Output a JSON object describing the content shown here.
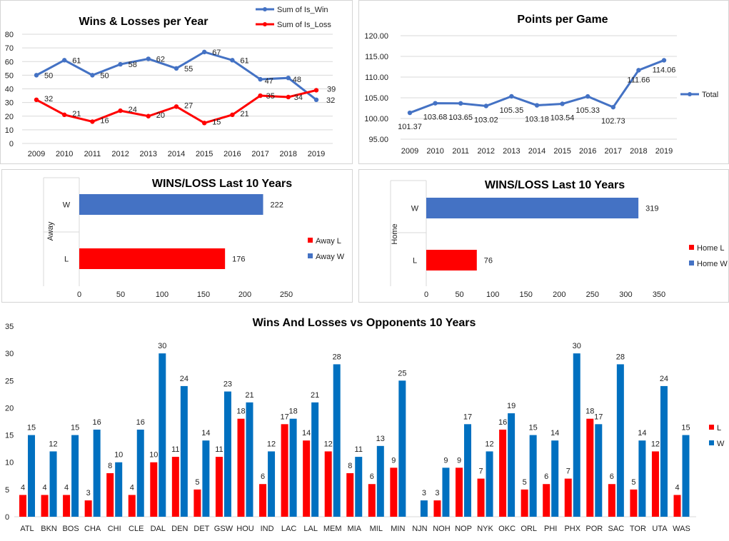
{
  "chart_data": [
    {
      "type": "line",
      "title": "Wins & Losses  per Year",
      "categories": [
        "2009",
        "2010",
        "2011",
        "2012",
        "2013",
        "2014",
        "2015",
        "2016",
        "2017",
        "2018",
        "2019"
      ],
      "ylim": [
        0,
        80
      ],
      "yticks": [
        "0",
        "10",
        "20",
        "30",
        "40",
        "50",
        "60",
        "70",
        "80"
      ],
      "series": [
        {
          "name": "Sum of Is_Win",
          "color": "#4472c4",
          "values": [
            50,
            61,
            50,
            58,
            62,
            55,
            67,
            61,
            47,
            48,
            32
          ]
        },
        {
          "name": "Sum of Is_Loss",
          "color": "#ff0000",
          "values": [
            32,
            21,
            16,
            24,
            20,
            27,
            15,
            21,
            35,
            34,
            39
          ]
        }
      ],
      "legend": "top-right"
    },
    {
      "type": "line",
      "title": "Points per Game",
      "categories": [
        "2009",
        "2010",
        "2011",
        "2012",
        "2013",
        "2014",
        "2015",
        "2016",
        "2017",
        "2018",
        "2019"
      ],
      "ylim": [
        95,
        120
      ],
      "yticks": [
        "95.00",
        "100.00",
        "105.00",
        "110.00",
        "115.00",
        "120.00"
      ],
      "series": [
        {
          "name": "Total",
          "color": "#4472c4",
          "values": [
            101.37,
            103.68,
            103.65,
            103.02,
            105.35,
            103.18,
            103.54,
            105.33,
            102.73,
            111.66,
            114.06
          ],
          "labels": [
            "101.37",
            "103.68",
            "103.65",
            "103.02",
            "105.35",
            "103.18",
            "103.54",
            "105.33",
            "102.73",
            "111.66",
            "114.06"
          ]
        }
      ],
      "legend": "right"
    },
    {
      "type": "bar",
      "orientation": "horizontal",
      "title": "WINS/LOSS  Last 10 Years",
      "ylabel": "Away",
      "categories": [
        "W",
        "L"
      ],
      "xlim": [
        0,
        250
      ],
      "xticks": [
        "0",
        "50",
        "100",
        "150",
        "200",
        "250"
      ],
      "series": [
        {
          "name": "Away L",
          "color": "#ff0000"
        },
        {
          "name": "Away W",
          "color": "#4472c4"
        }
      ],
      "bars": [
        {
          "category": "W",
          "value": 222,
          "color": "#4472c4"
        },
        {
          "category": "L",
          "value": 176,
          "color": "#ff0000"
        }
      ],
      "legend": "right"
    },
    {
      "type": "bar",
      "orientation": "horizontal",
      "title": "WINS/LOSS Last 10 Years",
      "ylabel": "Home",
      "categories": [
        "W",
        "L"
      ],
      "xlim": [
        0,
        350
      ],
      "xticks": [
        "0",
        "50",
        "100",
        "150",
        "200",
        "250",
        "300",
        "350"
      ],
      "series": [
        {
          "name": "Home L",
          "color": "#ff0000"
        },
        {
          "name": "Home W",
          "color": "#4472c4"
        }
      ],
      "bars": [
        {
          "category": "W",
          "value": 319,
          "color": "#4472c4"
        },
        {
          "category": "L",
          "value": 76,
          "color": "#ff0000"
        }
      ],
      "legend": "right"
    },
    {
      "type": "bar",
      "title": "Wins And Losses vs Opponents 10 Years",
      "categories": [
        "ATL",
        "BKN",
        "BOS",
        "CHA",
        "CHI",
        "CLE",
        "DAL",
        "DEN",
        "DET",
        "GSW",
        "HOU",
        "IND",
        "LAC",
        "LAL",
        "MEM",
        "MIA",
        "MIL",
        "MIN",
        "NJN",
        "NOH",
        "NOP",
        "NYK",
        "OKC",
        "ORL",
        "PHI",
        "PHX",
        "POR",
        "SAC",
        "TOR",
        "UTA",
        "WAS"
      ],
      "ylim": [
        0,
        35
      ],
      "yticks": [
        "0",
        "5",
        "10",
        "15",
        "20",
        "25",
        "30",
        "35"
      ],
      "series": [
        {
          "name": "L",
          "color": "#ff0000",
          "values": [
            4,
            4,
            4,
            3,
            8,
            4,
            10,
            11,
            5,
            11,
            18,
            6,
            17,
            14,
            12,
            8,
            6,
            9,
            null,
            3,
            9,
            7,
            16,
            5,
            6,
            7,
            18,
            6,
            5,
            12,
            4
          ]
        },
        {
          "name": "W",
          "color": "#0070c0",
          "values": [
            15,
            12,
            15,
            16,
            10,
            16,
            30,
            24,
            14,
            23,
            21,
            12,
            18,
            21,
            28,
            11,
            13,
            25,
            3,
            9,
            17,
            12,
            19,
            15,
            14,
            30,
            17,
            28,
            14,
            24,
            15
          ]
        }
      ],
      "legend": "right"
    }
  ]
}
